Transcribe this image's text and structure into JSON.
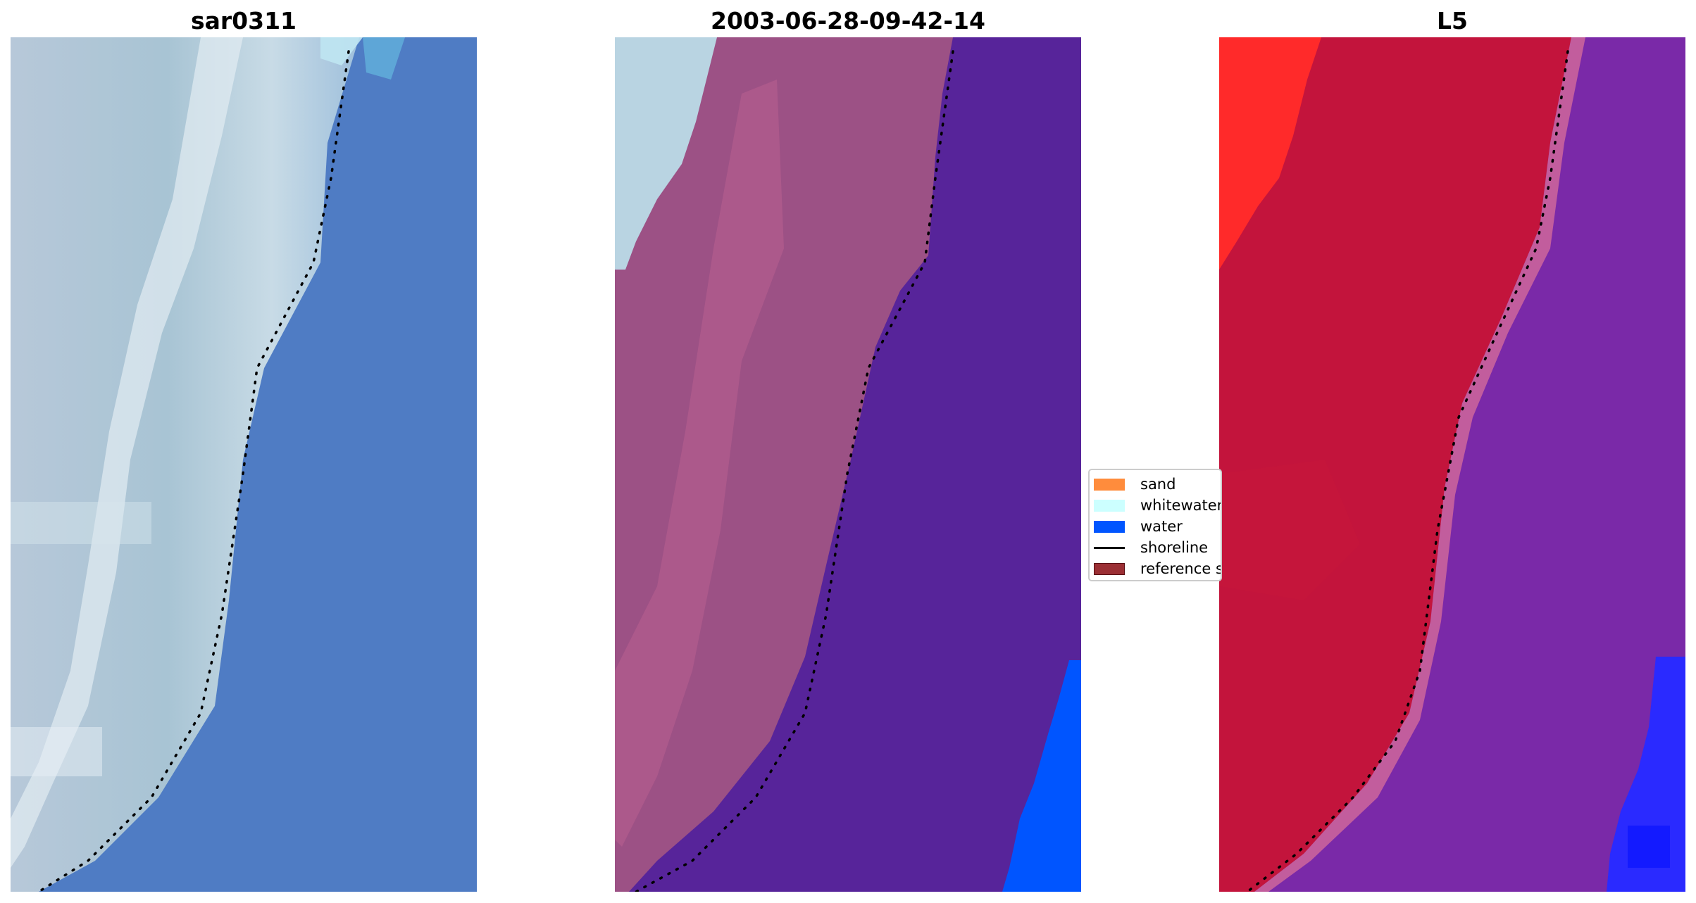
{
  "panels": [
    {
      "title": "sar0311",
      "icon": "rgb-image"
    },
    {
      "title": "2003-06-28-09-42-14",
      "icon": "classified-image"
    },
    {
      "title": "L5",
      "icon": "index-image"
    }
  ],
  "legend": {
    "items": [
      {
        "label": "sand",
        "color": "#ff8c3c",
        "kind": "patch"
      },
      {
        "label": "whitewater",
        "color": "#ccffff",
        "kind": "patch"
      },
      {
        "label": "water",
        "color": "#0055ff",
        "kind": "patch"
      },
      {
        "label": "shoreline",
        "color": "#000000",
        "kind": "line"
      },
      {
        "label": "reference s",
        "color": "#9b2f34",
        "kind": "patch"
      }
    ]
  },
  "colors": {
    "rgb_land": "#b4c9da",
    "rgb_sea": "#4f7cc4",
    "class_whitewater": "#b9d4e2",
    "class_sand": "#9c5185",
    "class_water": "#57249a",
    "class_deepwater": "#0055ff",
    "index_land_hot": "#ff2828",
    "index_land": "#c3143c",
    "index_sea": "#7a29a8",
    "index_deep": "#2020ff"
  }
}
